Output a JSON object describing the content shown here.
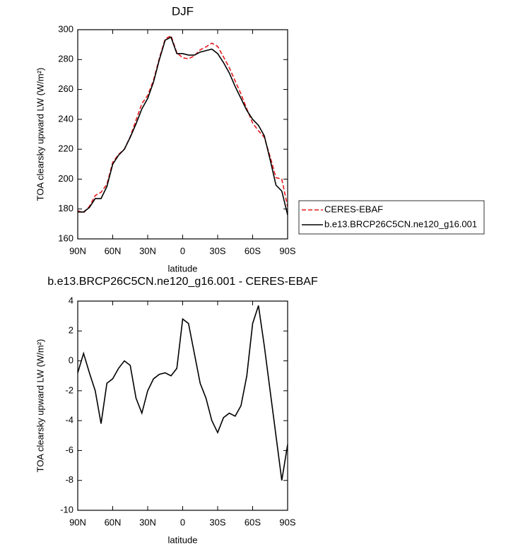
{
  "chart_data": [
    {
      "type": "line",
      "title": "DJF",
      "xlabel": "latitude",
      "ylabel": "TOA clearsky upward LW (W/m²)",
      "x": [
        90,
        85,
        80,
        75,
        70,
        65,
        60,
        55,
        50,
        45,
        40,
        35,
        30,
        25,
        20,
        15,
        10,
        5,
        0,
        -5,
        -10,
        -15,
        -20,
        -25,
        -30,
        -35,
        -40,
        -45,
        -50,
        -55,
        -60,
        -65,
        -70,
        -75,
        -80,
        -85,
        -90
      ],
      "series": [
        {
          "name": "CERES-EBAF",
          "color": "#e41a1c",
          "dash": true,
          "values": [
            178.8,
            177.5,
            181.8,
            189,
            191.2,
            196.5,
            211.2,
            216.5,
            220,
            228.3,
            239.5,
            250.5,
            256,
            266.2,
            280.9,
            293.8,
            296,
            284.5,
            281.2,
            280.5,
            282.5,
            286.5,
            288.5,
            291,
            288.8,
            281.8,
            274.5,
            265.7,
            257,
            247,
            237.5,
            232.3,
            228,
            215,
            201,
            200,
            181.6
          ]
        },
        {
          "name": "b.e13.BRCP26C5CN.ne120_g16.001",
          "color": "#000000",
          "dash": false,
          "values": [
            178,
            178,
            181,
            187,
            187,
            195,
            210,
            216,
            220,
            228,
            237,
            247,
            254,
            265,
            280,
            293,
            295,
            284,
            284,
            283,
            283,
            285,
            286,
            287,
            284,
            278,
            271,
            262,
            254,
            246,
            240,
            236,
            229,
            213,
            196,
            192,
            176
          ]
        }
      ],
      "xlim": [
        90,
        -90
      ],
      "xticks": [
        {
          "value": 90,
          "label": "90N"
        },
        {
          "value": 60,
          "label": "60N"
        },
        {
          "value": 30,
          "label": "30N"
        },
        0,
        {
          "value": -30,
          "label": "30S"
        },
        {
          "value": -60,
          "label": "60S"
        },
        {
          "value": -90,
          "label": "90S"
        }
      ],
      "ylim": [
        160,
        300
      ],
      "yticks": [
        160,
        180,
        200,
        220,
        240,
        260,
        280,
        300
      ],
      "legend": "right"
    },
    {
      "type": "line",
      "title": "b.e13.BRCP26C5CN.ne120_g16.001 - CERES-EBAF",
      "xlabel": "latitude",
      "ylabel": "TOA clearsky upward LW (W/m²)",
      "x": [
        90,
        85,
        80,
        75,
        70,
        65,
        60,
        55,
        50,
        45,
        40,
        35,
        30,
        25,
        20,
        15,
        10,
        5,
        0,
        -5,
        -10,
        -15,
        -20,
        -25,
        -30,
        -35,
        -40,
        -45,
        -50,
        -55,
        -60,
        -65,
        -70,
        -75,
        -80,
        -85,
        -90
      ],
      "series": [
        {
          "color": "#000000",
          "dash": false,
          "values": [
            -0.8,
            0.5,
            -0.8,
            -2.0,
            -4.2,
            -1.5,
            -1.2,
            -0.5,
            0,
            -0.3,
            -2.5,
            -3.5,
            -2.0,
            -1.2,
            -0.9,
            -0.8,
            -1.0,
            -0.5,
            2.8,
            2.5,
            0.5,
            -1.5,
            -2.5,
            -4.0,
            -4.8,
            -3.8,
            -3.5,
            -3.7,
            -3.0,
            -1.0,
            2.5,
            3.7,
            1.0,
            -2.0,
            -5.0,
            -8.0,
            -5.6
          ]
        }
      ],
      "xlim": [
        90,
        -90
      ],
      "xticks": [
        {
          "value": 90,
          "label": "90N"
        },
        {
          "value": 60,
          "label": "60N"
        },
        {
          "value": 30,
          "label": "30N"
        },
        0,
        {
          "value": -30,
          "label": "30S"
        },
        {
          "value": -60,
          "label": "60S"
        },
        {
          "value": -90,
          "label": "90S"
        }
      ],
      "ylim": [
        -10,
        4
      ],
      "yticks": [
        -10,
        -8,
        -6,
        -4,
        -2,
        0,
        2,
        4
      ]
    }
  ]
}
